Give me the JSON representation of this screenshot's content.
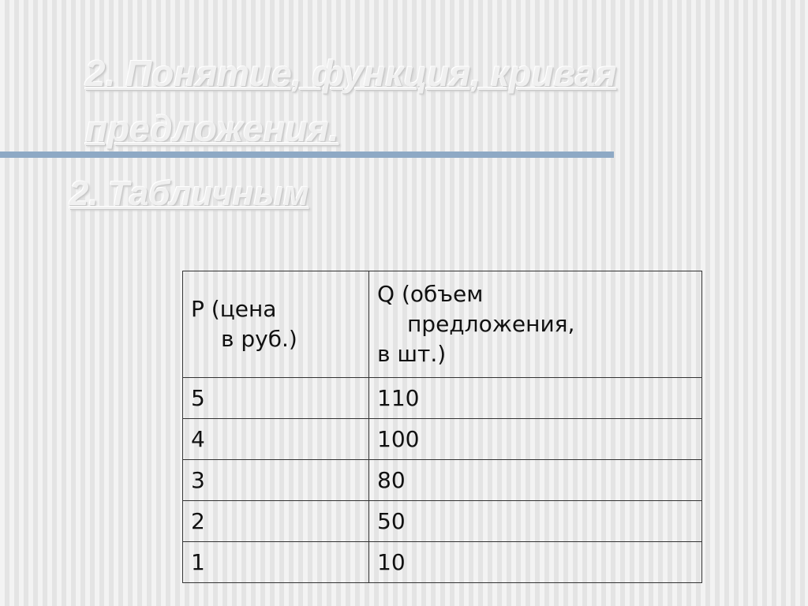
{
  "slide": {
    "title": "2. Понятие, функция, кривая предложения.",
    "subtitle": "2. Табличным",
    "accent_color": "#8ea9c5",
    "table": {
      "headers": [
        [
          "P (цена",
          "в руб.)"
        ],
        [
          "Q (объем",
          "предложения,",
          "в шт.)"
        ]
      ],
      "rows": [
        [
          "5",
          "110"
        ],
        [
          "4",
          "100"
        ],
        [
          "3",
          "80"
        ],
        [
          "2",
          "50"
        ],
        [
          "1",
          "10"
        ]
      ]
    }
  }
}
